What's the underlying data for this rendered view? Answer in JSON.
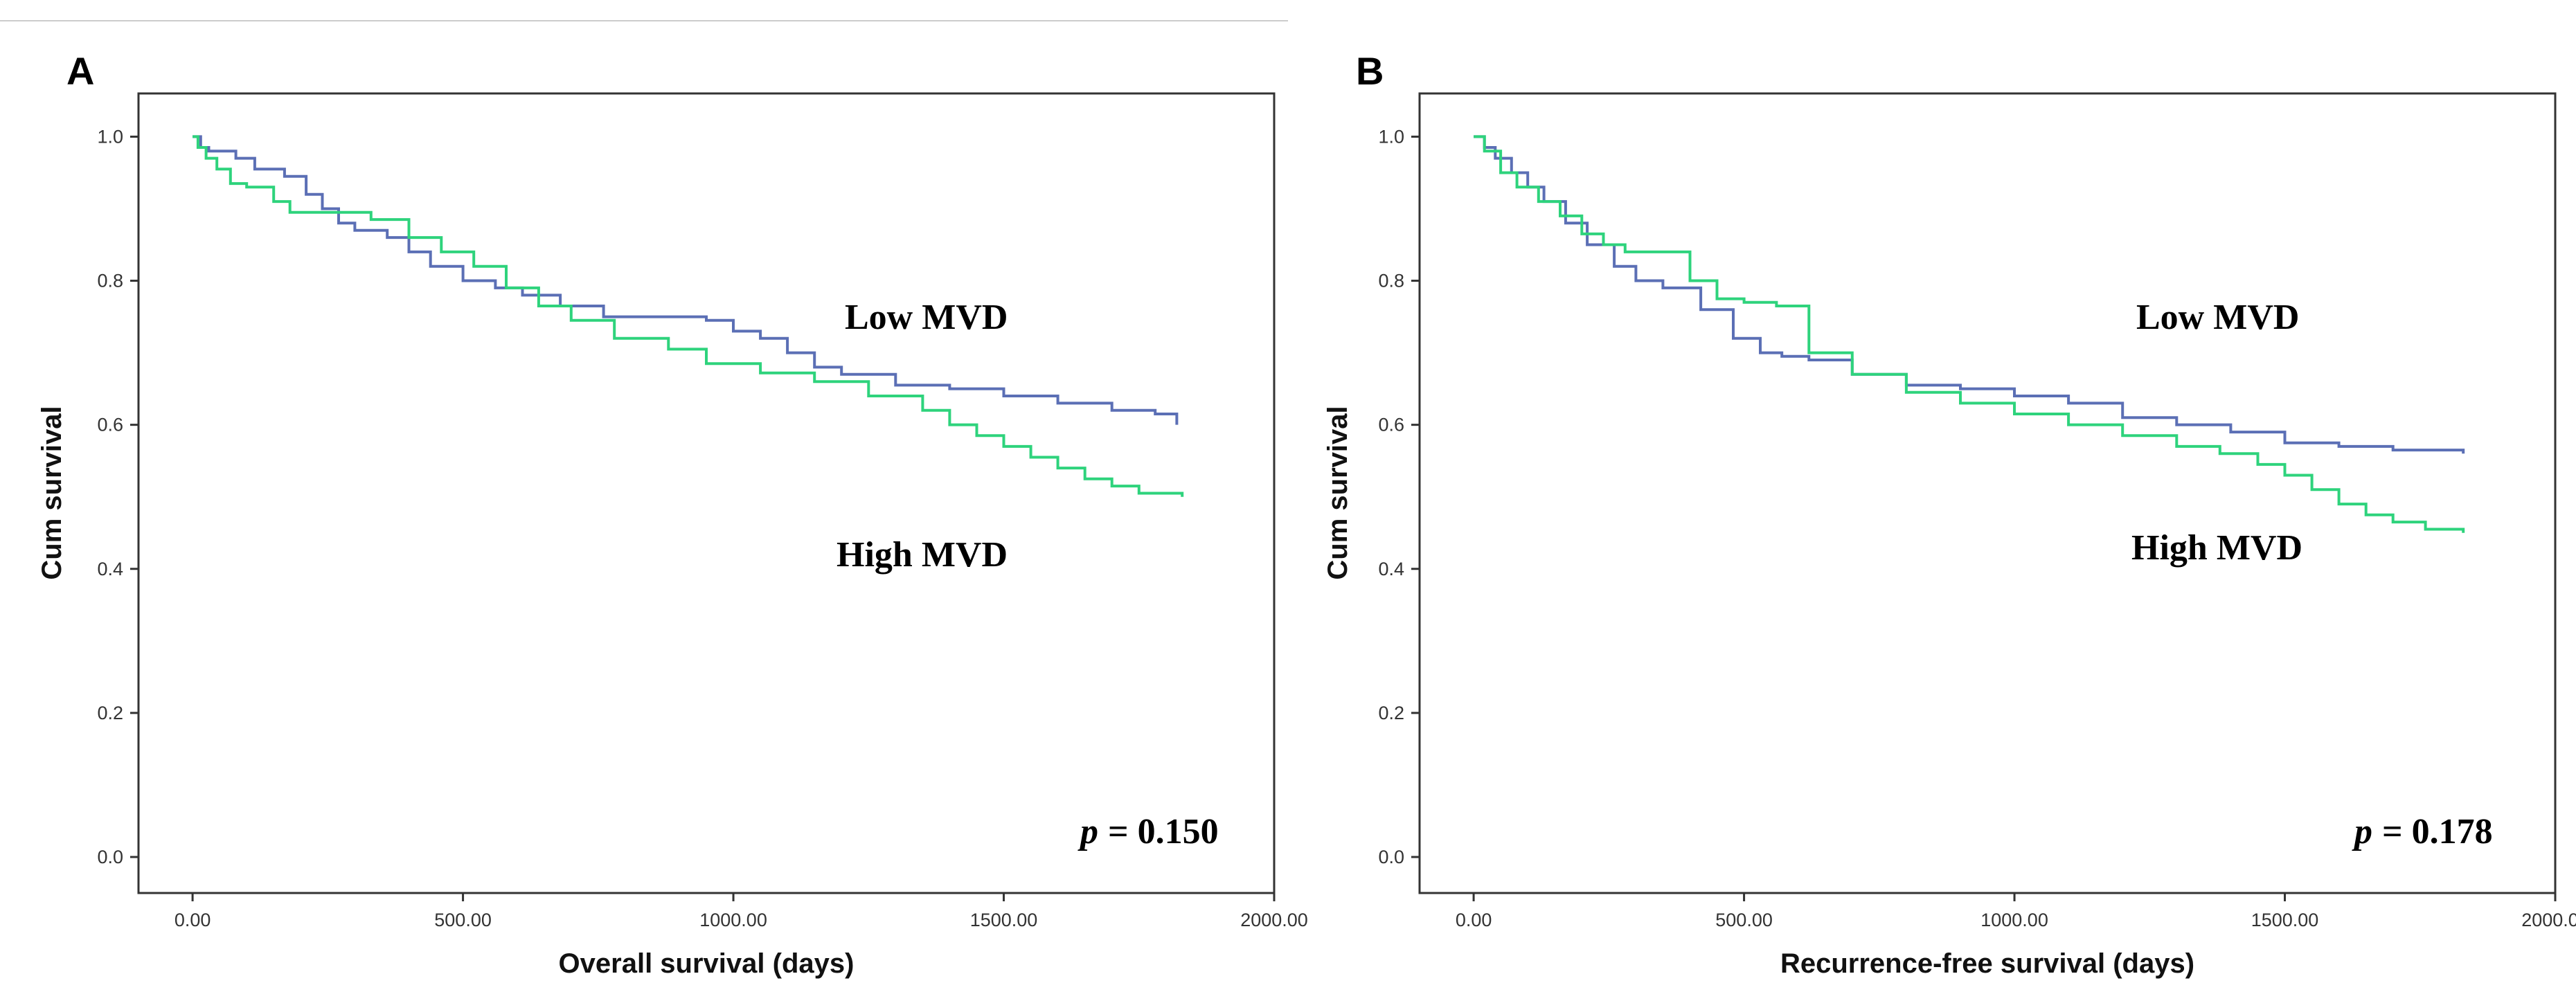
{
  "colors": {
    "low_mvd": "#5b6fb5",
    "high_mvd": "#2ed37c"
  },
  "chart_data": [
    {
      "type": "line",
      "panel_label": "A",
      "xlabel": "Overall survival (days)",
      "ylabel": "Cum survival",
      "xlim": [
        -100,
        2000
      ],
      "ylim": [
        -0.05,
        1.06
      ],
      "x_ticks": [
        0,
        500,
        1000,
        1500,
        2000
      ],
      "x_tick_labels": [
        "0.00",
        "500.00",
        "1000.00",
        "1500.00",
        "2000.00"
      ],
      "y_ticks": [
        0,
        0.2,
        0.4,
        0.6,
        0.8,
        1.0
      ],
      "y_tick_labels": [
        "0.0",
        "0.2",
        "0.4",
        "0.6",
        "0.8",
        "1.0"
      ],
      "annotations": {
        "low": "Low MVD",
        "high": "High MVD"
      },
      "p_label": "p",
      "p_value": "= 0.150",
      "series": [
        {
          "name": "Low MVD",
          "color": "#5b6fb5",
          "x": [
            0,
            15,
            30,
            80,
            115,
            170,
            210,
            240,
            270,
            300,
            360,
            400,
            440,
            500,
            560,
            610,
            680,
            760,
            880,
            950,
            1000,
            1050,
            1100,
            1150,
            1200,
            1300,
            1400,
            1500,
            1600,
            1700,
            1780,
            1820
          ],
          "y": [
            1.0,
            0.985,
            0.98,
            0.97,
            0.955,
            0.945,
            0.92,
            0.9,
            0.88,
            0.87,
            0.86,
            0.84,
            0.82,
            0.8,
            0.79,
            0.78,
            0.765,
            0.75,
            0.75,
            0.745,
            0.73,
            0.72,
            0.7,
            0.68,
            0.67,
            0.655,
            0.65,
            0.64,
            0.63,
            0.62,
            0.615,
            0.6
          ]
        },
        {
          "name": "High MVD",
          "color": "#2ed37c",
          "x": [
            0,
            10,
            25,
            45,
            70,
            100,
            150,
            180,
            230,
            270,
            330,
            400,
            460,
            520,
            580,
            640,
            700,
            780,
            880,
            950,
            1050,
            1150,
            1250,
            1350,
            1400,
            1450,
            1500,
            1550,
            1600,
            1650,
            1700,
            1750,
            1830
          ],
          "y": [
            1.0,
            0.985,
            0.97,
            0.955,
            0.935,
            0.93,
            0.91,
            0.895,
            0.895,
            0.895,
            0.885,
            0.86,
            0.84,
            0.82,
            0.79,
            0.765,
            0.745,
            0.72,
            0.705,
            0.685,
            0.672,
            0.66,
            0.64,
            0.62,
            0.6,
            0.585,
            0.57,
            0.555,
            0.54,
            0.525,
            0.515,
            0.505,
            0.5
          ]
        }
      ]
    },
    {
      "type": "line",
      "panel_label": "B",
      "xlabel": "Recurrence-free survival (days)",
      "ylabel": "Cum survival",
      "xlim": [
        -100,
        2000
      ],
      "ylim": [
        -0.05,
        1.06
      ],
      "x_ticks": [
        0,
        500,
        1000,
        1500,
        2000
      ],
      "x_tick_labels": [
        "0.00",
        "500.00",
        "1000.00",
        "1500.00",
        "2000.00"
      ],
      "y_ticks": [
        0,
        0.2,
        0.4,
        0.6,
        0.8,
        1.0
      ],
      "y_tick_labels": [
        "0.0",
        "0.2",
        "0.4",
        "0.6",
        "0.8",
        "1.0"
      ],
      "annotations": {
        "low": "Low MVD",
        "high": "High MVD"
      },
      "p_label": "p",
      "p_value": "= 0.178",
      "series": [
        {
          "name": "Low MVD",
          "color": "#5b6fb5",
          "x": [
            0,
            20,
            40,
            70,
            100,
            130,
            170,
            210,
            260,
            300,
            350,
            420,
            480,
            530,
            570,
            620,
            700,
            800,
            900,
            1000,
            1100,
            1200,
            1300,
            1400,
            1500,
            1600,
            1700,
            1830
          ],
          "y": [
            1.0,
            0.985,
            0.97,
            0.95,
            0.93,
            0.91,
            0.88,
            0.85,
            0.82,
            0.8,
            0.79,
            0.76,
            0.72,
            0.7,
            0.695,
            0.69,
            0.67,
            0.655,
            0.65,
            0.64,
            0.63,
            0.61,
            0.6,
            0.59,
            0.575,
            0.57,
            0.565,
            0.56
          ]
        },
        {
          "name": "High MVD",
          "color": "#2ed37c",
          "x": [
            0,
            20,
            50,
            80,
            120,
            160,
            200,
            240,
            280,
            330,
            400,
            450,
            500,
            560,
            620,
            700,
            800,
            900,
            1000,
            1100,
            1200,
            1300,
            1380,
            1450,
            1500,
            1550,
            1600,
            1650,
            1700,
            1760,
            1830
          ],
          "y": [
            1.0,
            0.98,
            0.95,
            0.93,
            0.91,
            0.89,
            0.865,
            0.85,
            0.84,
            0.84,
            0.8,
            0.775,
            0.77,
            0.765,
            0.7,
            0.67,
            0.645,
            0.63,
            0.615,
            0.6,
            0.585,
            0.57,
            0.56,
            0.545,
            0.53,
            0.51,
            0.49,
            0.475,
            0.465,
            0.455,
            0.45
          ]
        }
      ]
    }
  ]
}
